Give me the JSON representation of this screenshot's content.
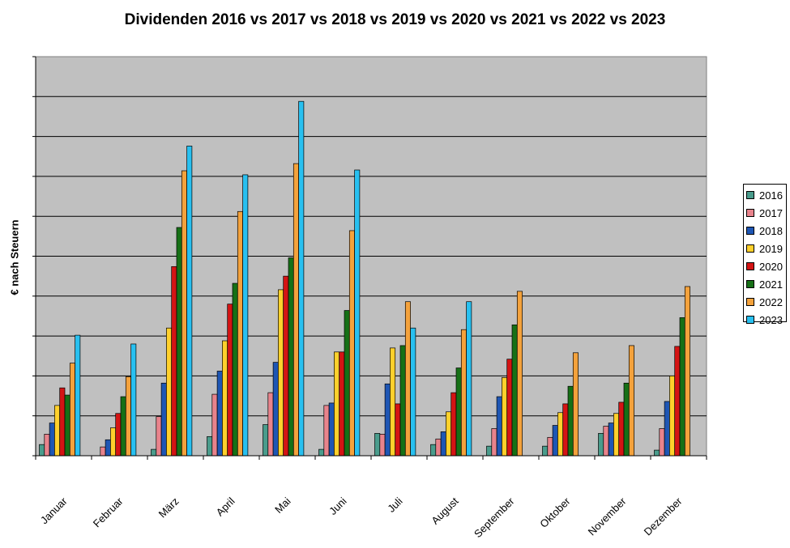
{
  "chart_data": {
    "type": "bar",
    "title": "Dividenden 2016 vs 2017 vs 2018 vs 2019 vs 2020 vs 2021 vs 2022 vs 2023",
    "xlabel": "",
    "ylabel": "€ nach Steuern",
    "categories": [
      "Januar",
      "Februar",
      "März",
      "April",
      "Mai",
      "Juni",
      "Juli",
      "August",
      "September",
      "Oktober",
      "November",
      "Dezember"
    ],
    "ylim": [
      0,
      10
    ],
    "y_gridlines": 10,
    "y_tick_labels_shown": false,
    "grid": true,
    "plot_background": "#c0c0c0",
    "legend": "right",
    "series": [
      {
        "name": "2016",
        "color": "#4a9c8c",
        "values": [
          0.28,
          0.0,
          0.16,
          0.48,
          0.78,
          0.16,
          0.56,
          0.28,
          0.24,
          0.24,
          0.56,
          0.14
        ]
      },
      {
        "name": "2017",
        "color": "#e8838c",
        "values": [
          0.54,
          0.22,
          0.98,
          1.54,
          1.58,
          1.26,
          0.54,
          0.42,
          0.68,
          0.46,
          0.74,
          0.68
        ]
      },
      {
        "name": "2018",
        "color": "#1e56b4",
        "values": [
          0.82,
          0.4,
          1.82,
          2.12,
          2.34,
          1.32,
          1.8,
          0.6,
          1.48,
          0.76,
          0.82,
          1.36
        ]
      },
      {
        "name": "2019",
        "color": "#ffd02c",
        "values": [
          1.26,
          0.7,
          3.2,
          2.88,
          4.16,
          2.6,
          2.7,
          1.1,
          1.96,
          1.08,
          1.06,
          2.0
        ]
      },
      {
        "name": "2020",
        "color": "#d41414",
        "values": [
          1.7,
          1.06,
          4.74,
          3.8,
          4.5,
          2.6,
          1.3,
          1.58,
          2.42,
          1.3,
          1.34,
          2.74
        ]
      },
      {
        "name": "2021",
        "color": "#167016",
        "values": [
          1.52,
          1.48,
          5.72,
          4.32,
          4.96,
          3.64,
          2.76,
          2.2,
          3.28,
          1.74,
          1.82,
          3.46
        ]
      },
      {
        "name": "2022",
        "color": "#f4a23c",
        "values": [
          2.32,
          1.98,
          7.14,
          6.12,
          7.32,
          5.64,
          3.86,
          3.16,
          4.12,
          2.58,
          2.76,
          4.24
        ]
      },
      {
        "name": "2023",
        "color": "#28c0f0",
        "values": [
          3.02,
          2.8,
          7.76,
          7.04,
          8.88,
          7.16,
          3.2,
          3.86,
          0,
          0,
          0,
          0
        ]
      }
    ]
  }
}
